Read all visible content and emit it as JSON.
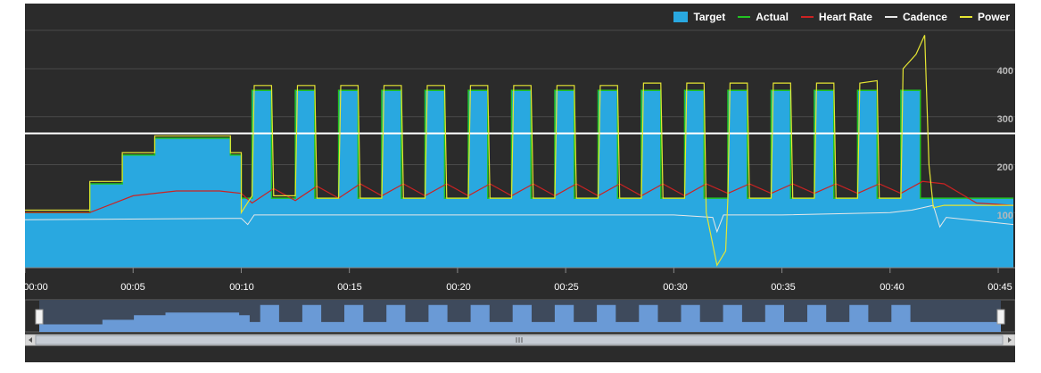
{
  "chart_data": {
    "type": "area",
    "title": "",
    "xlabel": "",
    "ylabel": "",
    "x_ticks": [
      "00:00",
      "00:05",
      "00:10",
      "00:15",
      "00:20",
      "00:25",
      "00:30",
      "00:35",
      "00:40",
      "00:45"
    ],
    "y_ticks": [
      "100",
      "200",
      "300",
      "400"
    ],
    "xlim_min": [
      0,
      45.7
    ],
    "ylim_watts": [
      -15,
      480
    ],
    "legend_position": "top-right",
    "grid": true,
    "ftp_line": 265,
    "series": [
      {
        "name": "Target",
        "kind": "area",
        "color": "#29a8e0",
        "points": [
          [
            0,
            100
          ],
          [
            3,
            100
          ],
          [
            3,
            160
          ],
          [
            4.5,
            160
          ],
          [
            4.5,
            220
          ],
          [
            6,
            220
          ],
          [
            6,
            255
          ],
          [
            9.5,
            255
          ],
          [
            9.5,
            220
          ],
          [
            10,
            220
          ],
          [
            10,
            130
          ],
          [
            10.5,
            130
          ],
          [
            10.5,
            355
          ],
          [
            11.4,
            355
          ],
          [
            11.4,
            130
          ],
          [
            12.5,
            130
          ],
          [
            12.5,
            355
          ],
          [
            13.4,
            355
          ],
          [
            13.4,
            130
          ],
          [
            14.5,
            130
          ],
          [
            14.5,
            355
          ],
          [
            15.4,
            355
          ],
          [
            15.4,
            130
          ],
          [
            16.5,
            130
          ],
          [
            16.5,
            355
          ],
          [
            17.4,
            355
          ],
          [
            17.4,
            130
          ],
          [
            18.5,
            130
          ],
          [
            18.5,
            355
          ],
          [
            19.4,
            355
          ],
          [
            19.4,
            130
          ],
          [
            20.5,
            130
          ],
          [
            20.5,
            355
          ],
          [
            21.4,
            355
          ],
          [
            21.4,
            130
          ],
          [
            22.5,
            130
          ],
          [
            22.5,
            355
          ],
          [
            23.4,
            355
          ],
          [
            23.4,
            130
          ],
          [
            24.5,
            130
          ],
          [
            24.5,
            355
          ],
          [
            25.4,
            355
          ],
          [
            25.4,
            130
          ],
          [
            26.5,
            130
          ],
          [
            26.5,
            355
          ],
          [
            27.4,
            355
          ],
          [
            27.4,
            130
          ],
          [
            28.5,
            130
          ],
          [
            28.5,
            355
          ],
          [
            29.4,
            355
          ],
          [
            29.4,
            130
          ],
          [
            30.5,
            130
          ],
          [
            30.5,
            355
          ],
          [
            31.4,
            355
          ],
          [
            31.4,
            130
          ],
          [
            32.5,
            130
          ],
          [
            32.5,
            355
          ],
          [
            33.4,
            355
          ],
          [
            33.4,
            130
          ],
          [
            34.5,
            130
          ],
          [
            34.5,
            355
          ],
          [
            35.4,
            355
          ],
          [
            35.4,
            130
          ],
          [
            36.5,
            130
          ],
          [
            36.5,
            355
          ],
          [
            37.4,
            355
          ],
          [
            37.4,
            130
          ],
          [
            38.5,
            130
          ],
          [
            38.5,
            355
          ],
          [
            39.4,
            355
          ],
          [
            39.4,
            130
          ],
          [
            40.5,
            130
          ],
          [
            40.5,
            355
          ],
          [
            41.4,
            355
          ],
          [
            41.4,
            130
          ],
          [
            45.7,
            130
          ]
        ]
      },
      {
        "name": "Actual",
        "kind": "line",
        "color": "#22c322"
      },
      {
        "name": "Heart Rate",
        "kind": "line",
        "color": "#cc2222",
        "points": [
          [
            0,
            100
          ],
          [
            3,
            100
          ],
          [
            5,
            135
          ],
          [
            7,
            145
          ],
          [
            9,
            145
          ],
          [
            10,
            140
          ],
          [
            10.5,
            120
          ],
          [
            11.5,
            150
          ],
          [
            12.5,
            125
          ],
          [
            13.5,
            155
          ],
          [
            14.5,
            130
          ],
          [
            15.5,
            160
          ],
          [
            16.5,
            135
          ],
          [
            17.5,
            160
          ],
          [
            18.5,
            135
          ],
          [
            19.5,
            160
          ],
          [
            20.5,
            135
          ],
          [
            21.5,
            160
          ],
          [
            22.5,
            135
          ],
          [
            23.5,
            160
          ],
          [
            24.5,
            135
          ],
          [
            25.5,
            160
          ],
          [
            26.5,
            135
          ],
          [
            27.5,
            160
          ],
          [
            28.5,
            135
          ],
          [
            29.5,
            160
          ],
          [
            30.5,
            135
          ],
          [
            31.5,
            160
          ],
          [
            32.5,
            140
          ],
          [
            33.5,
            160
          ],
          [
            34.5,
            140
          ],
          [
            35.5,
            160
          ],
          [
            36.5,
            140
          ],
          [
            37.5,
            160
          ],
          [
            38.5,
            140
          ],
          [
            39.5,
            160
          ],
          [
            40.5,
            140
          ],
          [
            41.5,
            165
          ],
          [
            42.5,
            160
          ],
          [
            44,
            120
          ],
          [
            45.7,
            115
          ]
        ]
      },
      {
        "name": "Cadence",
        "kind": "line",
        "color": "#e8e8e8",
        "points": [
          [
            0,
            85
          ],
          [
            10,
            88
          ],
          [
            10.3,
            75
          ],
          [
            10.6,
            95
          ],
          [
            15,
            95
          ],
          [
            20,
            95
          ],
          [
            25,
            95
          ],
          [
            30,
            95
          ],
          [
            31.8,
            90
          ],
          [
            32,
            60
          ],
          [
            32.3,
            95
          ],
          [
            35,
            95
          ],
          [
            40,
            100
          ],
          [
            41,
            105
          ],
          [
            42,
            115
          ],
          [
            42.3,
            70
          ],
          [
            42.6,
            90
          ],
          [
            45.7,
            75
          ]
        ]
      },
      {
        "name": "Power",
        "kind": "line",
        "color": "#e6e633",
        "points": [
          [
            0,
            105
          ],
          [
            3,
            105
          ],
          [
            3,
            165
          ],
          [
            4.5,
            165
          ],
          [
            4.5,
            225
          ],
          [
            6,
            225
          ],
          [
            6,
            260
          ],
          [
            9.5,
            260
          ],
          [
            9.5,
            225
          ],
          [
            10,
            225
          ],
          [
            10,
            100
          ],
          [
            10.5,
            135
          ],
          [
            10.6,
            365
          ],
          [
            11.4,
            365
          ],
          [
            11.5,
            135
          ],
          [
            12.5,
            135
          ],
          [
            12.6,
            365
          ],
          [
            13.4,
            365
          ],
          [
            13.5,
            130
          ],
          [
            14.5,
            130
          ],
          [
            14.6,
            365
          ],
          [
            15.4,
            365
          ],
          [
            15.5,
            130
          ],
          [
            16.5,
            130
          ],
          [
            16.6,
            365
          ],
          [
            17.4,
            365
          ],
          [
            17.5,
            130
          ],
          [
            18.5,
            130
          ],
          [
            18.6,
            365
          ],
          [
            19.4,
            365
          ],
          [
            19.5,
            130
          ],
          [
            20.5,
            130
          ],
          [
            20.6,
            365
          ],
          [
            21.4,
            365
          ],
          [
            21.5,
            130
          ],
          [
            22.5,
            130
          ],
          [
            22.6,
            365
          ],
          [
            23.4,
            365
          ],
          [
            23.5,
            130
          ],
          [
            24.5,
            130
          ],
          [
            24.6,
            365
          ],
          [
            25.4,
            365
          ],
          [
            25.5,
            130
          ],
          [
            26.5,
            130
          ],
          [
            26.6,
            365
          ],
          [
            27.4,
            365
          ],
          [
            27.5,
            130
          ],
          [
            28.5,
            130
          ],
          [
            28.6,
            370
          ],
          [
            29.4,
            370
          ],
          [
            29.5,
            130
          ],
          [
            30.5,
            130
          ],
          [
            30.6,
            370
          ],
          [
            31.4,
            370
          ],
          [
            31.5,
            100
          ],
          [
            32,
            -10
          ],
          [
            32.4,
            20
          ],
          [
            32.5,
            130
          ],
          [
            32.6,
            370
          ],
          [
            33.4,
            370
          ],
          [
            33.5,
            130
          ],
          [
            34.5,
            130
          ],
          [
            34.6,
            370
          ],
          [
            35.4,
            370
          ],
          [
            35.5,
            130
          ],
          [
            36.5,
            130
          ],
          [
            36.6,
            370
          ],
          [
            37.4,
            370
          ],
          [
            37.5,
            130
          ],
          [
            38.5,
            130
          ],
          [
            38.6,
            370
          ],
          [
            39.4,
            375
          ],
          [
            39.5,
            130
          ],
          [
            40.5,
            130
          ],
          [
            40.6,
            400
          ],
          [
            41.2,
            430
          ],
          [
            41.6,
            470
          ],
          [
            41.8,
            200
          ],
          [
            42,
            110
          ],
          [
            42.5,
            115
          ],
          [
            45.7,
            115
          ]
        ]
      }
    ]
  }
}
